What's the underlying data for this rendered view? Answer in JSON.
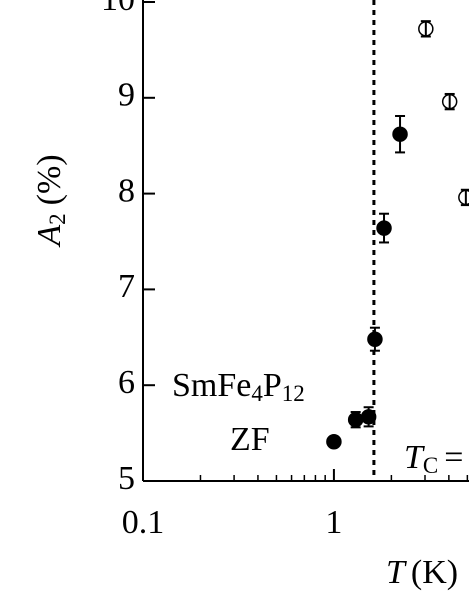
{
  "chart_data": {
    "type": "scatter",
    "xlabel": {
      "symbol": "T",
      "unit": "(K)"
    },
    "ylabel": {
      "symbol": "A",
      "subscript": "2",
      "unit": "(%)"
    },
    "sample": {
      "parts": [
        "SmFe",
        "4",
        "P",
        "12"
      ],
      "condition": "ZF"
    },
    "tc_label": {
      "symbol": "T",
      "subscript": "C",
      "tail": "="
    },
    "tc_line": 1.62,
    "xscale": "log",
    "xlim": [
      0.1,
      5.1
    ],
    "xticks": [
      0.1,
      1
    ],
    "xminorticks": [
      0.2,
      0.3,
      0.4,
      0.5,
      0.6,
      0.7,
      0.8,
      0.9,
      2,
      3,
      4,
      5
    ],
    "ylim": [
      5,
      10
    ],
    "yticks": [
      5,
      6,
      7,
      8,
      9,
      10
    ],
    "series": [
      {
        "marker": "filled",
        "color": "#000000",
        "x": [
          1.0,
          1.3,
          1.52,
          1.64,
          1.83,
          2.22
        ],
        "values": [
          5.41,
          5.64,
          5.67,
          6.48,
          7.64,
          8.62
        ],
        "errors": [
          0.05,
          0.08,
          0.1,
          0.12,
          0.15,
          0.19
        ]
      },
      {
        "marker": "open",
        "color": "#000000",
        "x": [
          3.03,
          4.04,
          4.91
        ],
        "values": [
          9.72,
          8.96,
          7.96
        ],
        "errors": [
          0.08,
          0.08,
          0.08
        ]
      }
    ]
  }
}
